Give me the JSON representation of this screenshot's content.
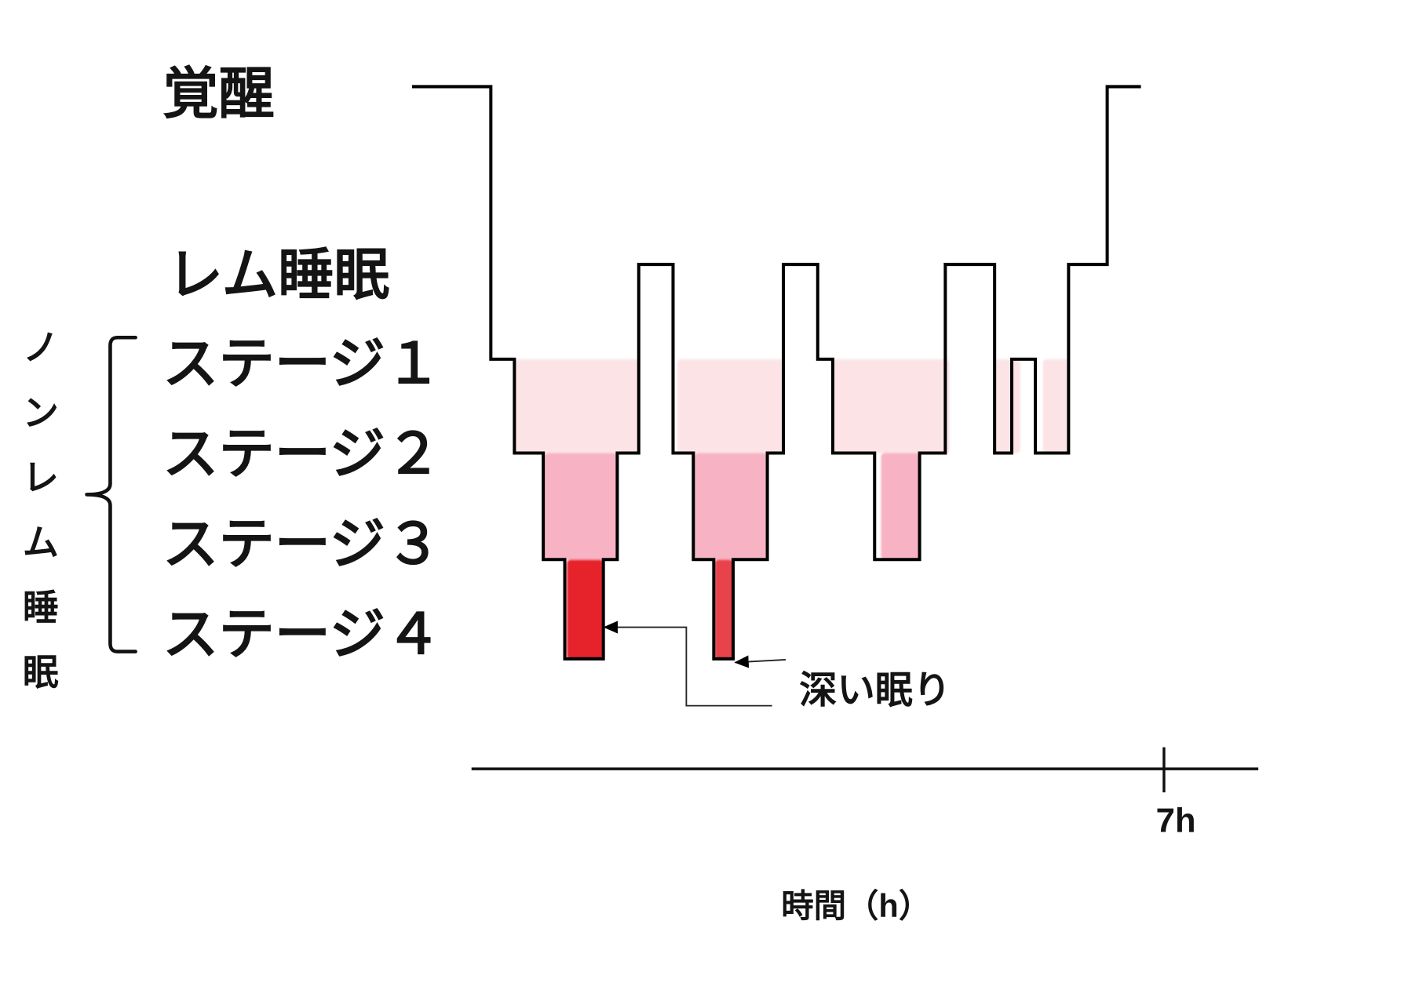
{
  "chart_data": {
    "type": "line",
    "step": true,
    "title": "",
    "xlabel": "時間（h）",
    "ylabel": "",
    "xlim": [
      0.54,
      7.88
    ],
    "x_ticks": [
      {
        "value": 7,
        "label": "7h"
      }
    ],
    "y_categories": [
      "覚醒",
      "レム睡眠",
      "ステージ１",
      "ステージ２",
      "ステージ３",
      "ステージ４"
    ],
    "y_group": {
      "label": "ノンレム睡眠",
      "from": "ステージ１",
      "to": "ステージ４"
    },
    "grid": false,
    "series": [
      {
        "color": "#000000",
        "segments": [
          {
            "stage": "覚醒",
            "start": 0,
            "end": 0.72
          },
          {
            "stage": "ステージ１",
            "start": 0.72,
            "end": 0.94
          },
          {
            "stage": "ステージ２",
            "start": 0.94,
            "end": 1.21
          },
          {
            "stage": "ステージ３",
            "start": 1.21,
            "end": 1.41
          },
          {
            "stage": "ステージ４",
            "start": 1.41,
            "end": 1.77
          },
          {
            "stage": "ステージ３",
            "start": 1.77,
            "end": 1.9
          },
          {
            "stage": "ステージ２",
            "start": 1.9,
            "end": 2.1
          },
          {
            "stage": "レム睡眠",
            "start": 2.1,
            "end": 2.42
          },
          {
            "stage": "ステージ２",
            "start": 2.42,
            "end": 2.61
          },
          {
            "stage": "ステージ３",
            "start": 2.61,
            "end": 2.8
          },
          {
            "stage": "ステージ４",
            "start": 2.8,
            "end": 2.98
          },
          {
            "stage": "ステージ３",
            "start": 2.98,
            "end": 3.3
          },
          {
            "stage": "ステージ２",
            "start": 3.3,
            "end": 3.45
          },
          {
            "stage": "レム睡眠",
            "start": 3.45,
            "end": 3.77
          },
          {
            "stage": "ステージ１",
            "start": 3.77,
            "end": 3.91
          },
          {
            "stage": "ステージ２",
            "start": 3.91,
            "end": 4.3
          },
          {
            "stage": "ステージ３",
            "start": 4.3,
            "end": 4.72
          },
          {
            "stage": "ステージ２",
            "start": 4.72,
            "end": 4.96
          },
          {
            "stage": "レム睡眠",
            "start": 4.96,
            "end": 5.42
          },
          {
            "stage": "ステージ２",
            "start": 5.42,
            "end": 5.58
          },
          {
            "stage": "ステージ１",
            "start": 5.58,
            "end": 5.8
          },
          {
            "stage": "ステージ２",
            "start": 5.8,
            "end": 6.11
          },
          {
            "stage": "レム睡眠",
            "start": 6.11,
            "end": 6.47
          },
          {
            "stage": "覚醒",
            "start": 6.47,
            "end": 6.77
          }
        ]
      }
    ],
    "highlights": [
      {
        "from": "ステージ１",
        "to": "ステージ２",
        "x": [
          0.94,
          2.1
        ],
        "color": "#fce4e6"
      },
      {
        "from": "ステージ２",
        "to": "ステージ３",
        "x": [
          1.22,
          1.9
        ],
        "color": "#f7b2c3"
      },
      {
        "from": "ステージ３",
        "to": "ステージ４",
        "x": [
          1.43,
          1.77
        ],
        "color": "#e62129"
      },
      {
        "from": "ステージ１",
        "to": "ステージ２",
        "x": [
          2.46,
          3.45
        ],
        "color": "#fce4e6"
      },
      {
        "from": "ステージ２",
        "to": "ステージ３",
        "x": [
          2.62,
          3.3
        ],
        "color": "#f7b2c3"
      },
      {
        "from": "ステージ３",
        "to": "ステージ４",
        "x": [
          2.81,
          2.98
        ],
        "color": "#e8424c"
      },
      {
        "from": "ステージ１",
        "to": "ステージ２",
        "x": [
          3.91,
          5.0
        ],
        "color": "#fce4e6"
      },
      {
        "from": "ステージ２",
        "to": "ステージ３",
        "x": [
          4.36,
          4.72
        ],
        "color": "#f7b2c3"
      },
      {
        "from": "ステージ１",
        "to": "ステージ２",
        "x": [
          5.42,
          5.66
        ],
        "color": "#fce4e6"
      },
      {
        "from": "ステージ１",
        "to": "ステージ２",
        "x": [
          5.87,
          6.11
        ],
        "color": "#fce4e6"
      }
    ],
    "annotations": [
      {
        "text": "深い眠り"
      }
    ]
  }
}
